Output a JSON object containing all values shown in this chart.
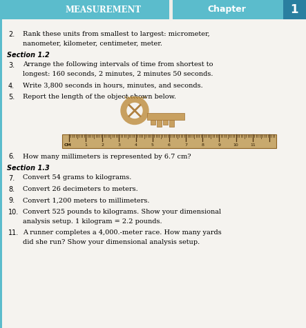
{
  "header_left_text": "MEASUREMENT",
  "header_chapter_text": "Chapter",
  "header_number": "1",
  "header_left_bg": "#5bbccc",
  "header_right_bg": "#5bbccc",
  "header_number_bg": "#2a7fa0",
  "page_bg": "#f0ede8",
  "content_bg": "#f5f3ef",
  "items": [
    {
      "num": "2.",
      "text": "Rank these units from smallest to largest: micrometer,\nnanometer, kilometer, centimeter, meter.",
      "bold": false,
      "indent": true
    },
    {
      "num": "Section 1.2",
      "text": "",
      "bold": true,
      "indent": false
    },
    {
      "num": "3.",
      "text": "Arrange the following intervals of time from shortest to\nlongest: 160 seconds, 2 minutes, 2 minutes 50 seconds.",
      "bold": false,
      "indent": true
    },
    {
      "num": "4.",
      "text": "Write 3,800 seconds in hours, minutes, and seconds.",
      "bold": false,
      "indent": true
    },
    {
      "num": "5.",
      "text": "Report the length of the object shown below.",
      "bold": false,
      "indent": true
    },
    {
      "num": "6.",
      "text": "How many millimeters is represented by 6.7 cm?",
      "bold": false,
      "indent": true
    },
    {
      "num": "Section 1.3",
      "text": "",
      "bold": true,
      "indent": false
    },
    {
      "num": "7.",
      "text": "Convert 54 grams to kilograms.",
      "bold": false,
      "indent": true
    },
    {
      "num": "8.",
      "text": "Convert 26 decimeters to meters.",
      "bold": false,
      "indent": true
    },
    {
      "num": "9.",
      "text": "Convert 1,200 meters to millimeters.",
      "bold": false,
      "indent": true
    },
    {
      "num": "10.",
      "text": "Convert 525 pounds to kilograms. Show your dimensional\nanalysis setup. 1 kilogram = 2.2 pounds.",
      "bold": false,
      "indent": true
    },
    {
      "num": "11.",
      "text": "A runner completes a 4,000.-meter race. How many yards\ndid she run? Show your dimensional analysis setup.",
      "bold": false,
      "indent": true
    }
  ],
  "ruler_color": "#c8a96e",
  "ruler_tick_color": "#4a3010",
  "key_color": "#c8a060",
  "left_margin_line": "#5bbccc"
}
